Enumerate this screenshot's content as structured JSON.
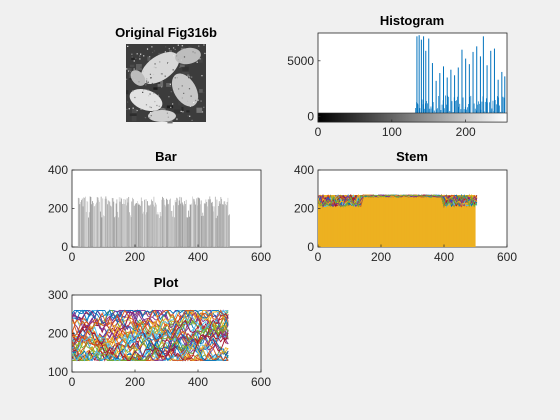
{
  "figure": {
    "background": "#f0f0f0",
    "colors": {
      "axes": "#262626",
      "histogram_bar": "#0072bd",
      "bar_face": "#b4b4b4",
      "stem_fill": "#edb120",
      "line_palette": [
        "#0072bd",
        "#d95319",
        "#edb120",
        "#7e2f8e",
        "#77ac30",
        "#4dbeee",
        "#a2142f"
      ]
    }
  },
  "chart_data": [
    {
      "id": "image",
      "type": "image",
      "title": "Original Fig316b",
      "content": "grayscale-photo"
    },
    {
      "id": "histogram",
      "type": "bar",
      "title": "Histogram",
      "xlim": [
        0,
        256
      ],
      "ylim": [
        -500,
        7500
      ],
      "xticks": [
        "0",
        "100",
        "200"
      ],
      "yticks": [
        "0",
        "5000"
      ],
      "xtick_values": [
        0,
        100,
        200
      ],
      "ytick_values": [
        0,
        5000
      ],
      "colorbar": "gray",
      "nonzero_range": [
        132,
        253
      ],
      "peaks": [
        {
          "x": 134,
          "y": 7200
        },
        {
          "x": 137,
          "y": 7300
        },
        {
          "x": 140,
          "y": 6900
        },
        {
          "x": 143,
          "y": 7200
        },
        {
          "x": 146,
          "y": 5900
        },
        {
          "x": 150,
          "y": 7000
        },
        {
          "x": 155,
          "y": 4800
        },
        {
          "x": 160,
          "y": 3200
        },
        {
          "x": 165,
          "y": 3900
        },
        {
          "x": 170,
          "y": 4500
        },
        {
          "x": 175,
          "y": 3500
        },
        {
          "x": 180,
          "y": 4200
        },
        {
          "x": 185,
          "y": 3700
        },
        {
          "x": 190,
          "y": 4400
        },
        {
          "x": 195,
          "y": 6000
        },
        {
          "x": 200,
          "y": 5200
        },
        {
          "x": 205,
          "y": 4700
        },
        {
          "x": 210,
          "y": 5800
        },
        {
          "x": 215,
          "y": 6300
        },
        {
          "x": 220,
          "y": 5400
        },
        {
          "x": 224,
          "y": 7200
        },
        {
          "x": 229,
          "y": 4600
        },
        {
          "x": 234,
          "y": 5900
        },
        {
          "x": 239,
          "y": 6100
        },
        {
          "x": 244,
          "y": 3300
        },
        {
          "x": 249,
          "y": 4000
        },
        {
          "x": 253,
          "y": 3600
        }
      ]
    },
    {
      "id": "bar",
      "type": "bar",
      "title": "Bar",
      "xlim": [
        0,
        600
      ],
      "ylim": [
        0,
        400
      ],
      "xticks": [
        "0",
        "200",
        "400",
        "600"
      ],
      "yticks": [
        "0",
        "200",
        "400"
      ],
      "xtick_values": [
        0,
        200,
        400,
        600
      ],
      "ytick_values": [
        0,
        200,
        400
      ],
      "x_range": [
        0,
        500
      ],
      "typical_range": [
        150,
        265
      ]
    },
    {
      "id": "stem",
      "type": "stem",
      "title": "Stem",
      "xlim": [
        0,
        600
      ],
      "ylim": [
        0,
        400
      ],
      "xticks": [
        "0",
        "200",
        "400",
        "600"
      ],
      "yticks": [
        "0",
        "200",
        "400"
      ],
      "xtick_values": [
        0,
        200,
        400,
        600
      ],
      "ytick_values": [
        0,
        200,
        400
      ],
      "x_range": [
        0,
        500
      ],
      "y_range": [
        130,
        270
      ]
    },
    {
      "id": "plot",
      "type": "line",
      "title": "Plot",
      "xlim": [
        0,
        600
      ],
      "ylim": [
        100,
        300
      ],
      "xticks": [
        "0",
        "200",
        "400",
        "600"
      ],
      "yticks": [
        "100",
        "200",
        "300"
      ],
      "xtick_values": [
        0,
        200,
        400,
        600
      ],
      "ytick_values": [
        100,
        200,
        300
      ],
      "x_range": [
        0,
        500
      ],
      "y_range": [
        130,
        260
      ]
    }
  ]
}
